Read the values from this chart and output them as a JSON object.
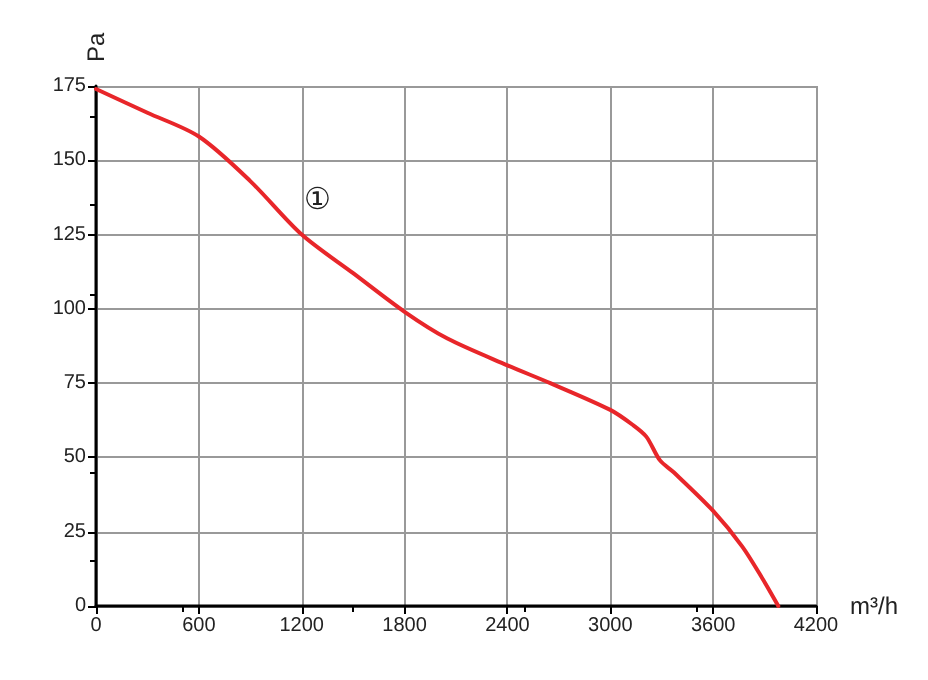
{
  "chart_data": {
    "type": "line",
    "xlabel": "m³/h",
    "ylabel": "Pa",
    "x": [
      0,
      300,
      600,
      900,
      1200,
      1500,
      1800,
      2050,
      2400,
      2650,
      3000,
      3130,
      3210,
      3290,
      3370,
      3600,
      3770,
      3890,
      3980
    ],
    "series": [
      {
        "color": "#e8262a",
        "values": [
          174,
          166,
          158,
          143,
          125,
          112,
          99,
          90,
          81,
          75,
          66,
          61,
          57,
          49,
          45,
          32,
          20,
          9,
          0
        ]
      }
    ],
    "xlim": [
      0,
      4200
    ],
    "xticks": [
      0,
      600,
      1200,
      1800,
      2400,
      3000,
      3600,
      4200
    ],
    "ylim": [
      0,
      175
    ],
    "yticks": [
      0,
      25,
      50,
      75,
      100,
      125,
      150,
      175
    ],
    "grid": true,
    "marker": "none",
    "line_style": "solid",
    "annotations": [
      "①"
    ]
  }
}
